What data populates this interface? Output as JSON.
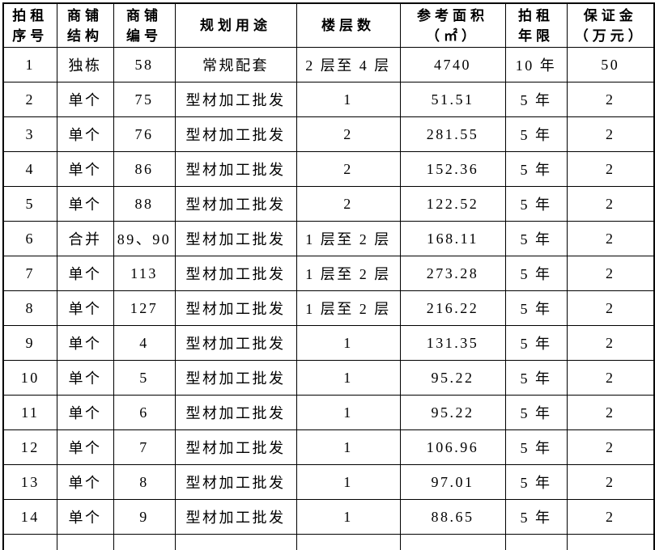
{
  "page": {
    "background_color": "#ffffff",
    "border_color": "#000000",
    "text_color": "#000000"
  },
  "table": {
    "columns": [
      {
        "id": "auction-no",
        "label": "拍租\n序号"
      },
      {
        "id": "structure",
        "label": "商铺\n结构"
      },
      {
        "id": "shop-no",
        "label": "商铺\n编号"
      },
      {
        "id": "planned-use",
        "label": "规划用途"
      },
      {
        "id": "floors",
        "label": "楼层数"
      },
      {
        "id": "ref-area",
        "label": "参考面积\n（㎡）"
      },
      {
        "id": "rent-term",
        "label": "拍租\n年限"
      },
      {
        "id": "deposit",
        "label": "保证金\n（万元）"
      }
    ],
    "rows": [
      [
        "1",
        "独栋",
        "58",
        "常规配套",
        "2 层至 4 层",
        "4740",
        "10 年",
        "50"
      ],
      [
        "2",
        "单个",
        "75",
        "型材加工批发",
        "1",
        "51.51",
        "5 年",
        "2"
      ],
      [
        "3",
        "单个",
        "76",
        "型材加工批发",
        "2",
        "281.55",
        "5 年",
        "2"
      ],
      [
        "4",
        "单个",
        "86",
        "型材加工批发",
        "2",
        "152.36",
        "5 年",
        "2"
      ],
      [
        "5",
        "单个",
        "88",
        "型材加工批发",
        "2",
        "122.52",
        "5 年",
        "2"
      ],
      [
        "6",
        "合并",
        "89、90",
        "型材加工批发",
        "1 层至 2 层",
        "168.11",
        "5 年",
        "2"
      ],
      [
        "7",
        "单个",
        "113",
        "型材加工批发",
        "1 层至 2 层",
        "273.28",
        "5 年",
        "2"
      ],
      [
        "8",
        "单个",
        "127",
        "型材加工批发",
        "1 层至 2 层",
        "216.22",
        "5 年",
        "2"
      ],
      [
        "9",
        "单个",
        "4",
        "型材加工批发",
        "1",
        "131.35",
        "5 年",
        "2"
      ],
      [
        "10",
        "单个",
        "5",
        "型材加工批发",
        "1",
        "95.22",
        "5 年",
        "2"
      ],
      [
        "11",
        "单个",
        "6",
        "型材加工批发",
        "1",
        "95.22",
        "5 年",
        "2"
      ],
      [
        "12",
        "单个",
        "7",
        "型材加工批发",
        "1",
        "106.96",
        "5 年",
        "2"
      ],
      [
        "13",
        "单个",
        "8",
        "型材加工批发",
        "1",
        "97.01",
        "5 年",
        "2"
      ],
      [
        "14",
        "单个",
        "9",
        "型材加工批发",
        "1",
        "88.65",
        "5 年",
        "2"
      ]
    ]
  }
}
